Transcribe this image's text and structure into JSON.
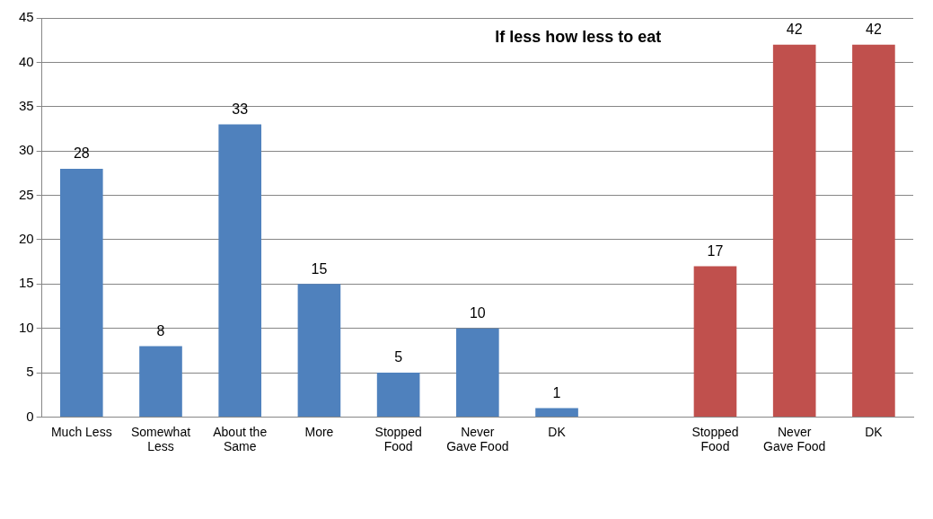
{
  "chart_data": {
    "type": "bar",
    "title": "If less how less to eat",
    "categories": [
      "Much Less",
      "Somewhat Less",
      "About the Same",
      "More",
      "Stopped Food",
      "Never Gave Food",
      "DK",
      null,
      "Stopped Food",
      "Never Gave Food",
      "DK"
    ],
    "series": [
      {
        "color": "#4f81bd",
        "values": [
          28,
          8,
          33,
          15,
          5,
          10,
          1,
          null,
          null,
          null,
          null
        ]
      },
      {
        "color": "#c0504d",
        "values": [
          null,
          null,
          null,
          null,
          null,
          null,
          null,
          null,
          17,
          42,
          42
        ]
      }
    ],
    "ylim": [
      0,
      45
    ],
    "yticks": [
      0,
      5,
      10,
      15,
      20,
      25,
      30,
      35,
      40,
      45
    ],
    "grid": "y",
    "data_labels": true,
    "legend": false
  }
}
